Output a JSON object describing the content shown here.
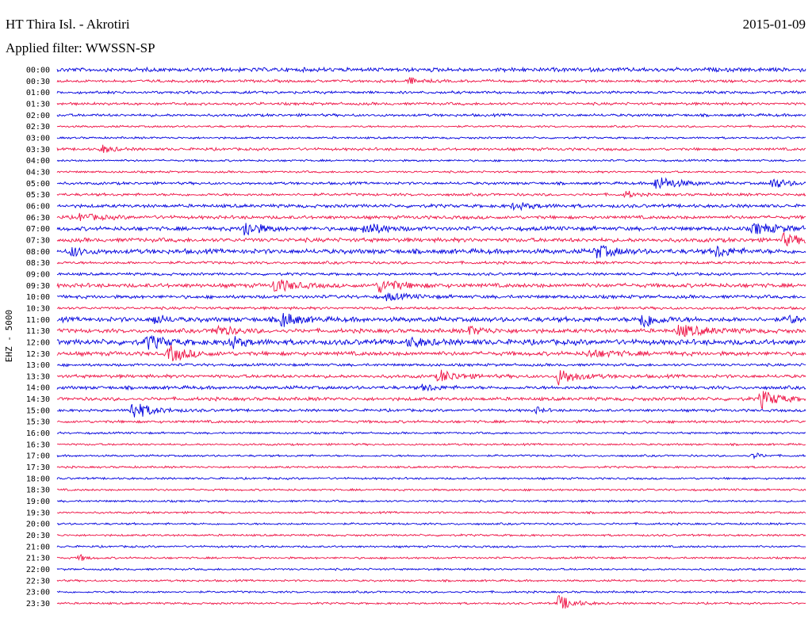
{
  "header": {
    "station": "HT Thira Isl. - Akrotiri",
    "date": "2015-01-09",
    "filter": "Applied filter: WWSSN-SP"
  },
  "chart_data": {
    "type": "line",
    "title": "HT Thira Isl. - Akrotiri",
    "date": "2015-01-09",
    "filter": "WWSSN-SP",
    "ylabel": "EHZ - 5000",
    "colors": [
      "#0000dd",
      "#ee1144"
    ],
    "row_labels": [
      "00:00",
      "00:30",
      "01:00",
      "01:30",
      "02:00",
      "02:30",
      "03:00",
      "03:30",
      "04:00",
      "04:30",
      "05:00",
      "05:30",
      "06:00",
      "06:30",
      "07:00",
      "07:30",
      "08:00",
      "08:30",
      "09:00",
      "09:30",
      "10:00",
      "10:30",
      "11:00",
      "11:30",
      "12:00",
      "12:30",
      "13:00",
      "13:30",
      "14:00",
      "14:30",
      "15:00",
      "15:30",
      "16:00",
      "16:30",
      "17:00",
      "17:30",
      "18:00",
      "18:30",
      "19:00",
      "19:30",
      "20:00",
      "20:30",
      "21:00",
      "21:30",
      "22:00",
      "22:30",
      "23:00",
      "23:30"
    ],
    "noise_level": [
      3,
      2,
      2,
      2,
      2,
      1.5,
      1.5,
      2,
      1.5,
      1.5,
      2,
      2,
      2.5,
      2.5,
      3,
      3,
      3.5,
      2,
      2,
      3,
      2.5,
      2,
      3.5,
      3,
      4,
      3,
      2,
      2.5,
      2.5,
      2.5,
      2,
      2,
      1.5,
      1.5,
      1.5,
      1.5,
      1.5,
      1.5,
      1.5,
      1.5,
      1.5,
      1.5,
      1.5,
      1.5,
      1.5,
      1.5,
      1.5,
      1.5
    ],
    "events": [
      {
        "row": 1,
        "t": 0.47,
        "amp": 4,
        "dur": 0.03
      },
      {
        "row": 7,
        "t": 0.06,
        "amp": 5,
        "dur": 0.03
      },
      {
        "row": 10,
        "t": 0.8,
        "amp": 9,
        "dur": 0.06
      },
      {
        "row": 10,
        "t": 0.955,
        "amp": 7,
        "dur": 0.04
      },
      {
        "row": 11,
        "t": 0.76,
        "amp": 5,
        "dur": 0.02
      },
      {
        "row": 12,
        "t": 0.61,
        "amp": 4,
        "dur": 0.06
      },
      {
        "row": 13,
        "t": 0.03,
        "amp": 4,
        "dur": 0.06
      },
      {
        "row": 14,
        "t": 0.25,
        "amp": 11,
        "dur": 0.04
      },
      {
        "row": 14,
        "t": 0.41,
        "amp": 8,
        "dur": 0.05
      },
      {
        "row": 14,
        "t": 0.93,
        "amp": 6,
        "dur": 0.08
      },
      {
        "row": 15,
        "t": 0.97,
        "amp": 7,
        "dur": 0.05
      },
      {
        "row": 16,
        "t": 0.02,
        "amp": 6,
        "dur": 0.03
      },
      {
        "row": 16,
        "t": 0.72,
        "amp": 8,
        "dur": 0.05
      },
      {
        "row": 16,
        "t": 0.88,
        "amp": 7,
        "dur": 0.04
      },
      {
        "row": 19,
        "t": 0.29,
        "amp": 9,
        "dur": 0.05
      },
      {
        "row": 19,
        "t": 0.43,
        "amp": 8,
        "dur": 0.06
      },
      {
        "row": 20,
        "t": 0.44,
        "amp": 4,
        "dur": 0.06
      },
      {
        "row": 22,
        "t": 0.13,
        "amp": 6,
        "dur": 0.03
      },
      {
        "row": 22,
        "t": 0.3,
        "amp": 10,
        "dur": 0.04
      },
      {
        "row": 22,
        "t": 0.78,
        "amp": 12,
        "dur": 0.04
      },
      {
        "row": 22,
        "t": 0.98,
        "amp": 6,
        "dur": 0.02
      },
      {
        "row": 23,
        "t": 0.21,
        "amp": 7,
        "dur": 0.05
      },
      {
        "row": 23,
        "t": 0.55,
        "amp": 5,
        "dur": 0.05
      },
      {
        "row": 23,
        "t": 0.83,
        "amp": 7,
        "dur": 0.08
      },
      {
        "row": 24,
        "t": 0.12,
        "amp": 8,
        "dur": 0.05
      },
      {
        "row": 24,
        "t": 0.23,
        "amp": 7,
        "dur": 0.04
      },
      {
        "row": 24,
        "t": 0.47,
        "amp": 5,
        "dur": 0.05
      },
      {
        "row": 25,
        "t": 0.15,
        "amp": 10,
        "dur": 0.05
      },
      {
        "row": 25,
        "t": 0.71,
        "amp": 4,
        "dur": 0.08
      },
      {
        "row": 27,
        "t": 0.51,
        "amp": 8,
        "dur": 0.05
      },
      {
        "row": 27,
        "t": 0.67,
        "amp": 10,
        "dur": 0.05
      },
      {
        "row": 28,
        "t": 0.49,
        "amp": 5,
        "dur": 0.03
      },
      {
        "row": 29,
        "t": 0.94,
        "amp": 11,
        "dur": 0.05
      },
      {
        "row": 30,
        "t": 0.1,
        "amp": 12,
        "dur": 0.05
      },
      {
        "row": 30,
        "t": 0.64,
        "amp": 4,
        "dur": 0.02
      },
      {
        "row": 34,
        "t": 0.93,
        "amp": 4,
        "dur": 0.02
      },
      {
        "row": 43,
        "t": 0.03,
        "amp": 4,
        "dur": 0.02
      },
      {
        "row": 47,
        "t": 0.67,
        "amp": 10,
        "dur": 0.04
      }
    ]
  }
}
